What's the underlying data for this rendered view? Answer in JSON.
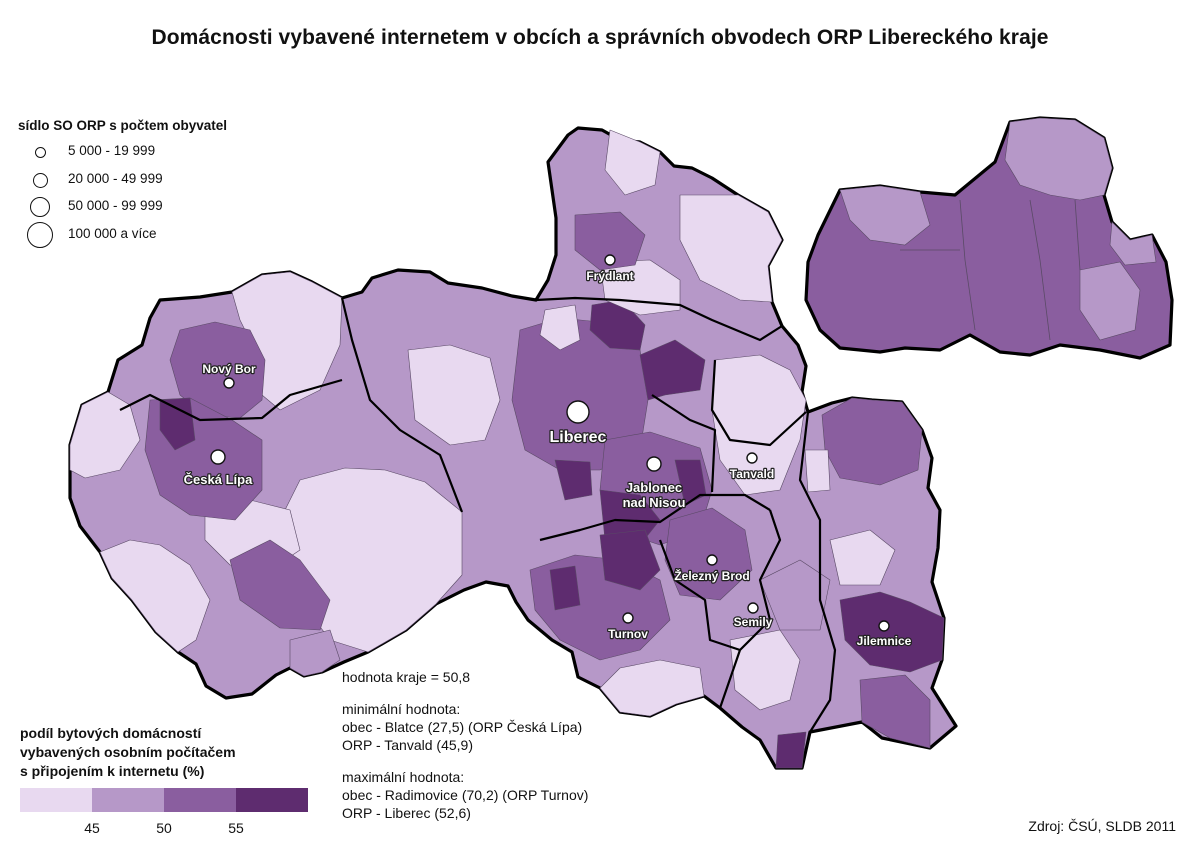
{
  "title": "Domácnosti vybavené internetem v obcích a správních obvodech ORP Libereckého kraje",
  "size_legend": {
    "heading": "sídlo SO ORP s počtem obyvatel",
    "classes": [
      "5 000 - 19 999",
      "20 000 - 49 999",
      "50 000 - 99 999",
      "100 000 a více"
    ]
  },
  "color_legend": {
    "heading_lines": [
      "podíl bytových domácností",
      "vybavených osobním počítačem",
      "s připojením k internetu (%)"
    ],
    "colors": [
      "#e8d9f0",
      "#b698c8",
      "#8a5e9f",
      "#5e2c6f"
    ],
    "ticks": [
      "45",
      "50",
      "55"
    ]
  },
  "cities": [
    {
      "name": "Liberec",
      "lines": [
        "Liberec"
      ],
      "size_class": "100 000 a více"
    },
    {
      "name": "Jablonec nad Nisou",
      "lines": [
        "Jablonec",
        "nad Nisou"
      ],
      "size_class": "20 000 - 49 999"
    },
    {
      "name": "Česká Lípa",
      "lines": [
        "Česká Lípa"
      ],
      "size_class": "20 000 - 49 999"
    },
    {
      "name": "Nový Bor",
      "lines": [
        "Nový Bor"
      ],
      "size_class": "5 000 - 19 999"
    },
    {
      "name": "Frýdlant",
      "lines": [
        "Frýdlant"
      ],
      "size_class": "5 000 - 19 999"
    },
    {
      "name": "Tanvald",
      "lines": [
        "Tanvald"
      ],
      "size_class": "5 000 - 19 999"
    },
    {
      "name": "Železný Brod",
      "lines": [
        "Železný Brod"
      ],
      "size_class": "5 000 - 19 999"
    },
    {
      "name": "Turnov",
      "lines": [
        "Turnov"
      ],
      "size_class": "5 000 - 19 999"
    },
    {
      "name": "Semily",
      "lines": [
        "Semily"
      ],
      "size_class": "5 000 - 19 999"
    },
    {
      "name": "Jilemnice",
      "lines": [
        "Jilemnice"
      ],
      "size_class": "5 000 - 19 999"
    }
  ],
  "stats": {
    "region_value": "hodnota kraje = 50,8",
    "min_heading": "minimální hodnota:",
    "min_obec": "obec - Blatce (27,5) (ORP Česká Lípa)",
    "min_orp": "ORP - Tanvald (45,9)",
    "max_heading": "maximální hodnota:",
    "max_obec": "obec - Radimovice (70,2) (ORP Turnov)",
    "max_orp": "ORP - Liberec (52,6)"
  },
  "source": "Zdroj: ČSÚ, SLDB 2011"
}
